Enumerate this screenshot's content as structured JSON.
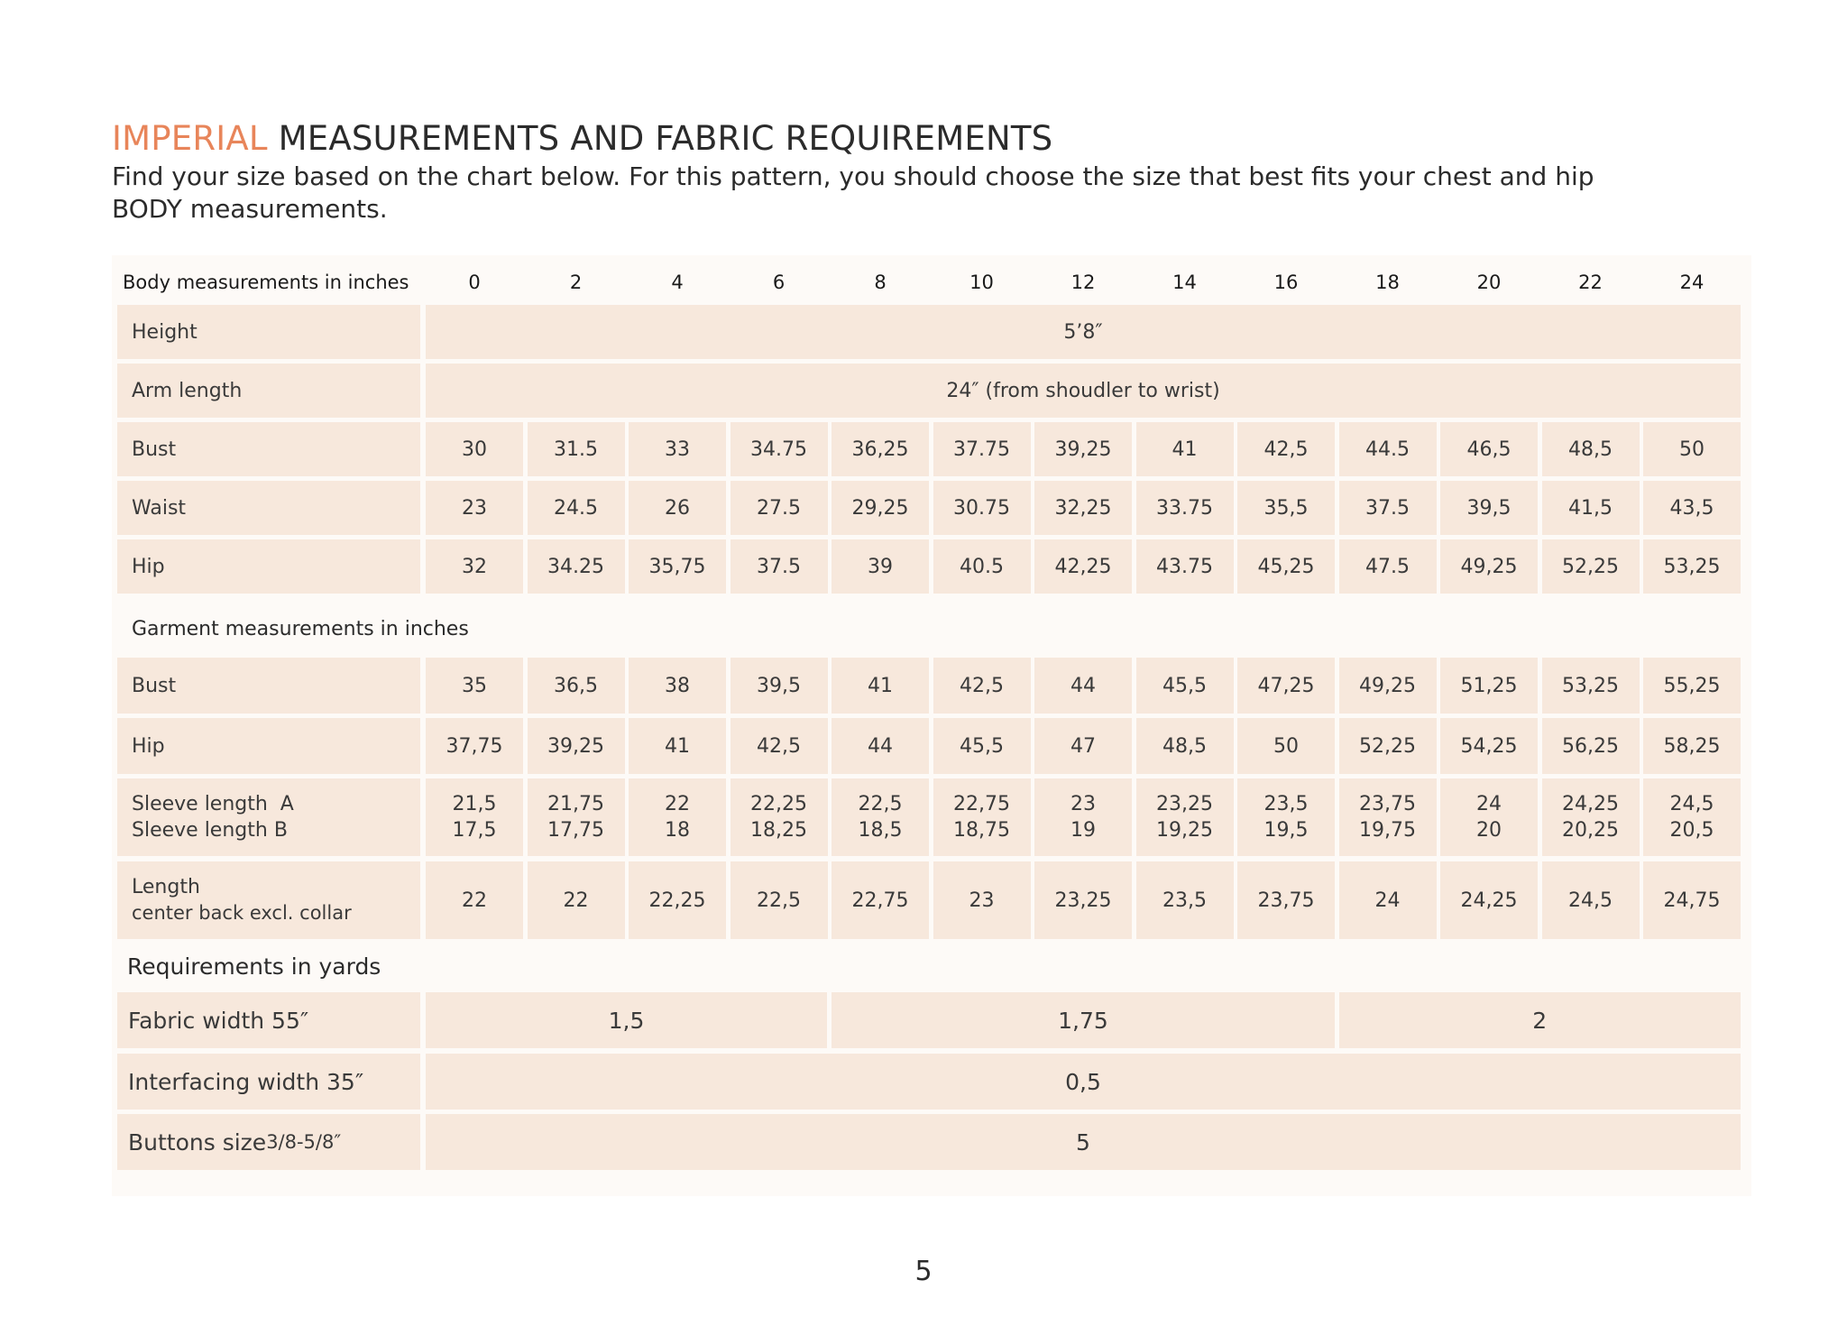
{
  "title": {
    "accent": "IMPERIAL",
    "rest": " MEASUREMENTS AND FABRIC REQUIREMENTS"
  },
  "intro": "Find your size based on the chart below. For this pattern, you should choose the size that best fits your chest and hip BODY measurements.",
  "table": {
    "header_label": "Body measurements in inches",
    "sizes": [
      "0",
      "2",
      "4",
      "6",
      "8",
      "10",
      "12",
      "14",
      "16",
      "18",
      "20",
      "22",
      "24"
    ],
    "body_rows": [
      {
        "label": "Height",
        "span": "5’8″"
      },
      {
        "label": "Arm length",
        "span": "24″ (from shoudler to wrist)"
      },
      {
        "label": "Bust",
        "values": [
          "30",
          "31.5",
          "33",
          "34.75",
          "36,25",
          "37.75",
          "39,25",
          "41",
          "42,5",
          "44.5",
          "46,5",
          "48,5",
          "50"
        ]
      },
      {
        "label": "Waist",
        "values": [
          "23",
          "24.5",
          "26",
          "27.5",
          "29,25",
          "30.75",
          "32,25",
          "33.75",
          "35,5",
          "37.5",
          "39,5",
          "41,5",
          "43,5"
        ]
      },
      {
        "label": "Hip",
        "values": [
          "32",
          "34.25",
          "35,75",
          "37.5",
          "39",
          "40.5",
          "42,25",
          "43.75",
          "45,25",
          "47.5",
          "49,25",
          "52,25",
          "53,25"
        ]
      }
    ],
    "garment_section": "Garment measurements in inches",
    "garment_rows": [
      {
        "label": "Bust",
        "values": [
          "35",
          "36,5",
          "38",
          "39,5",
          "41",
          "42,5",
          "44",
          "45,5",
          "47,25",
          "49,25",
          "51,25",
          "53,25",
          "55,25"
        ]
      },
      {
        "label": "Hip",
        "values": [
          "37,75",
          "39,25",
          "41",
          "42,5",
          "44",
          "45,5",
          "47",
          "48,5",
          "50",
          "52,25",
          "54,25",
          "56,25",
          "58,25"
        ]
      }
    ],
    "sleeve_row": {
      "label_a": "Sleeve length  A",
      "label_b": "Sleeve length B",
      "values_a": [
        "21,5",
        "21,75",
        "22",
        "22,25",
        "22,5",
        "22,75",
        "23",
        "23,25",
        "23,5",
        "23,75",
        "24",
        "24,25",
        "24,5"
      ],
      "values_b": [
        "17,5",
        "17,75",
        "18",
        "18,25",
        "18,5",
        "18,75",
        "19",
        "19,25",
        "19,5",
        "19,75",
        "20",
        "20,25",
        "20,5"
      ]
    },
    "length_row": {
      "label": "Length",
      "sublabel": "center back excl. collar",
      "values": [
        "22",
        "22",
        "22,25",
        "22,5",
        "22,75",
        "23",
        "23,25",
        "23,5",
        "23,75",
        "24",
        "24,25",
        "24,5",
        "24,75"
      ]
    },
    "requirements_section": "Requirements in yards",
    "fabric": {
      "label": "Fabric width 55″",
      "groups": [
        "1,5",
        "1,75",
        "2"
      ]
    },
    "interfacing": {
      "label": "Interfacing width 35″",
      "value": "0,5"
    },
    "buttons": {
      "label": "Buttons size",
      "label_small": "3/8-5/8″",
      "value": "5"
    }
  },
  "page_number": "5"
}
